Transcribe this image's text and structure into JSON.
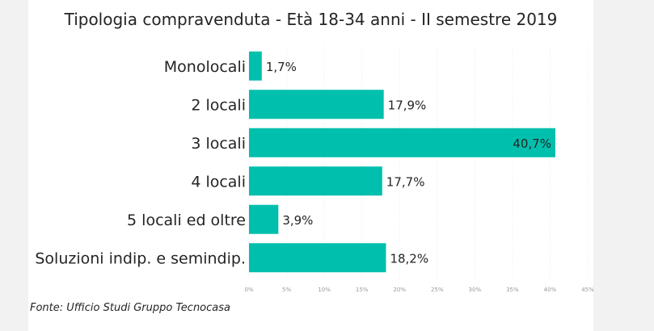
{
  "chart_data": {
    "type": "bar",
    "orientation": "horizontal",
    "title": "Tipologia compravenduta - Età 18-34 anni - II semestre 2019",
    "categories": [
      "Monolocali",
      "2 locali",
      "3 locali",
      "4 locali",
      "5 locali ed oltre",
      "Soluzioni indip. e semindip."
    ],
    "values": [
      1.7,
      17.9,
      40.7,
      17.7,
      3.9,
      18.2
    ],
    "data_labels": [
      "1,7%",
      "17,9%",
      "40,7%",
      "17,7%",
      "3,9%",
      "18,2%"
    ],
    "xlim": [
      0,
      45
    ],
    "xticks": [
      "0%",
      "5%",
      "10%",
      "15%",
      "20%",
      "25%",
      "30%",
      "35%",
      "40%",
      "45%"
    ],
    "grid": true,
    "bar_color": "#01bfad"
  },
  "source": "Fonte: Ufficio Studi Gruppo Tecnocasa"
}
